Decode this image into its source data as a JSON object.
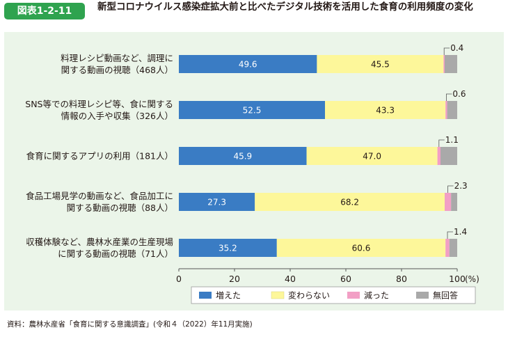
{
  "header": {
    "badge": "図表1-2-11",
    "title": "新型コロナウイルス感染症拡大前と比べたデジタル技術を活用した食育の利用頻度の変化"
  },
  "source": "資料：農林水産省「食育に関する意識調査」(令和４（2022）年11月実施)",
  "chart_data": {
    "type": "bar",
    "orientation": "horizontal",
    "stacked": true,
    "categories": [
      [
        "料理レシピ動画など、調理に",
        "関する動画の視聴（468人）"
      ],
      [
        "SNS等での料理レシピ等、食に関する",
        "情報の入手や収集（326人）"
      ],
      [
        "食育に関するアプリの利用（181人）"
      ],
      [
        "食品工場見学の動画など、食品加工に",
        "関する動画の視聴（88人）"
      ],
      [
        "収穫体験など、農林水産業の生産現場",
        "に関する動画の視聴（71人）"
      ]
    ],
    "series": [
      {
        "name": "増えた",
        "color": "#3a7cc4",
        "values": [
          49.6,
          52.5,
          45.9,
          27.3,
          35.2
        ]
      },
      {
        "name": "変わらない",
        "color": "#fdf79a",
        "values": [
          45.5,
          43.3,
          47.0,
          68.2,
          60.6
        ]
      },
      {
        "name": "減った",
        "color": "#f29fc5",
        "values": [
          0.4,
          0.6,
          1.1,
          2.3,
          1.4
        ]
      },
      {
        "name": "無回答",
        "color": "#a9a9a9",
        "values": [
          4.5,
          3.6,
          6.0,
          2.2,
          2.8
        ]
      }
    ],
    "data_labels": [
      [
        "49.6",
        "45.5",
        "0.4"
      ],
      [
        "52.5",
        "43.3",
        "0.6"
      ],
      [
        "45.9",
        "47.0",
        "1.1"
      ],
      [
        "27.3",
        "68.2",
        "2.3"
      ],
      [
        "35.2",
        "60.6",
        "1.4"
      ]
    ],
    "xlim": [
      0,
      100
    ],
    "xticks": [
      "0",
      "20",
      "40",
      "60",
      "80",
      "100"
    ],
    "xunit": "(%)",
    "legend_position": "bottom",
    "grid": false
  }
}
